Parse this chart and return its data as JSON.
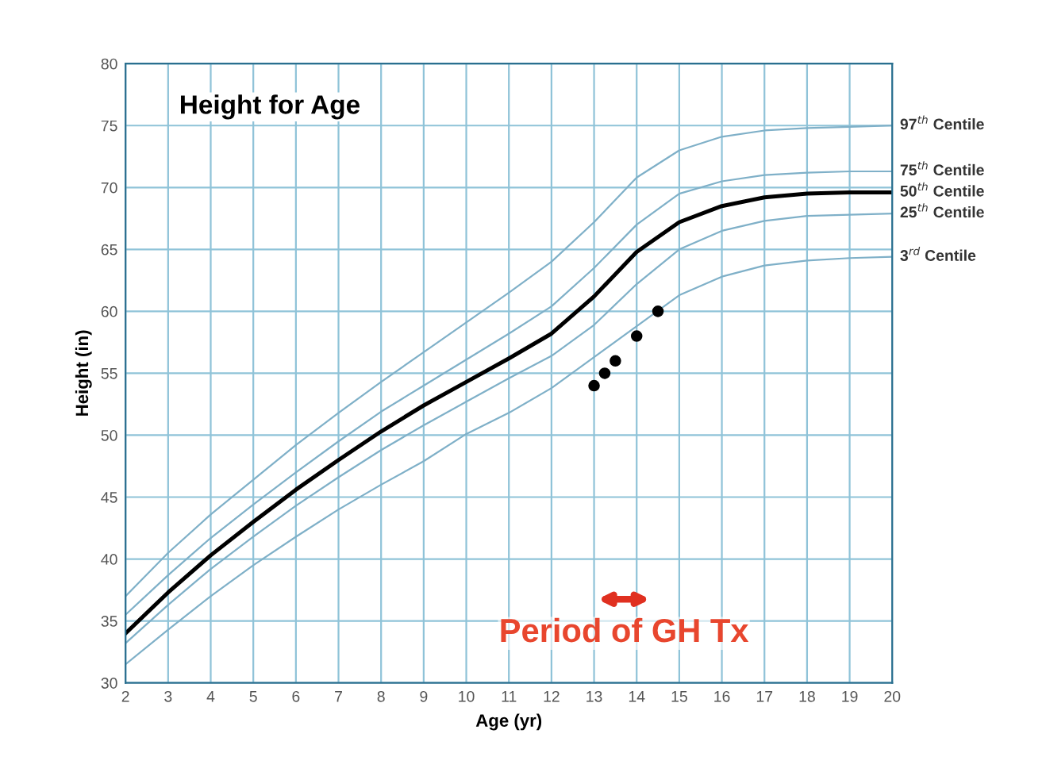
{
  "chart_data": {
    "type": "line",
    "title": "Height for Age",
    "xlabel": "Age (yr)",
    "ylabel": "Height (in)",
    "x": [
      2,
      3,
      4,
      5,
      6,
      7,
      8,
      9,
      10,
      11,
      12,
      13,
      14,
      15,
      16,
      17,
      18,
      19,
      20
    ],
    "series": [
      {
        "name": "97$^{th}$ Centile",
        "color": "#7fb0c8",
        "values": [
          37,
          40.5,
          43.6,
          46.4,
          49.2,
          51.8,
          54.3,
          56.7,
          59.1,
          61.5,
          64,
          67.2,
          70.8,
          73,
          74.1,
          74.6,
          74.8,
          74.9,
          75
        ]
      },
      {
        "name": "75$^{th}$ Centile",
        "color": "#7fb0c8",
        "values": [
          35.5,
          38.7,
          41.7,
          44.4,
          47,
          49.5,
          51.9,
          54,
          56.1,
          58.2,
          60.4,
          63.5,
          67,
          69.5,
          70.5,
          71,
          71.2,
          71.3,
          71.3
        ]
      },
      {
        "name": "50$^{th}$ Centile",
        "color": "#000000",
        "values": [
          34,
          37.3,
          40.3,
          43,
          45.6,
          48,
          50.3,
          52.4,
          54.3,
          56.2,
          58.2,
          61.2,
          64.8,
          67.2,
          68.5,
          69.2,
          69.5,
          69.6,
          69.6
        ]
      },
      {
        "name": "25$^{th}$ Centile",
        "color": "#7fb0c8",
        "values": [
          33.2,
          36.3,
          39.2,
          41.8,
          44.3,
          46.6,
          48.8,
          50.8,
          52.7,
          54.6,
          56.4,
          58.9,
          62.2,
          65,
          66.5,
          67.3,
          67.7,
          67.8,
          67.9
        ]
      },
      {
        "name": "3$^{rd}$ Centile",
        "color": "#7fb0c8",
        "values": [
          31.5,
          34.3,
          37,
          39.5,
          41.8,
          44,
          46,
          47.9,
          50.1,
          51.8,
          53.8,
          56.3,
          58.8,
          61.3,
          62.8,
          63.7,
          64.1,
          64.3,
          64.4
        ]
      },
      {
        "type": "scatter",
        "color": "#000000",
        "x": [
          13,
          13.25,
          13.5,
          14,
          14.5
        ],
        "values": [
          54,
          55,
          56,
          58,
          60
        ]
      }
    ],
    "xlim": [
      2,
      20
    ],
    "ylim": [
      30,
      80
    ],
    "xticks": [
      2,
      3,
      4,
      5,
      6,
      7,
      8,
      9,
      10,
      11,
      12,
      13,
      14,
      15,
      16,
      17,
      18,
      19,
      20
    ],
    "yticks": [
      30,
      35,
      40,
      45,
      50,
      55,
      60,
      65,
      70,
      75,
      80
    ],
    "grid": true,
    "annotations": [
      "Period of GH Tx"
    ]
  }
}
